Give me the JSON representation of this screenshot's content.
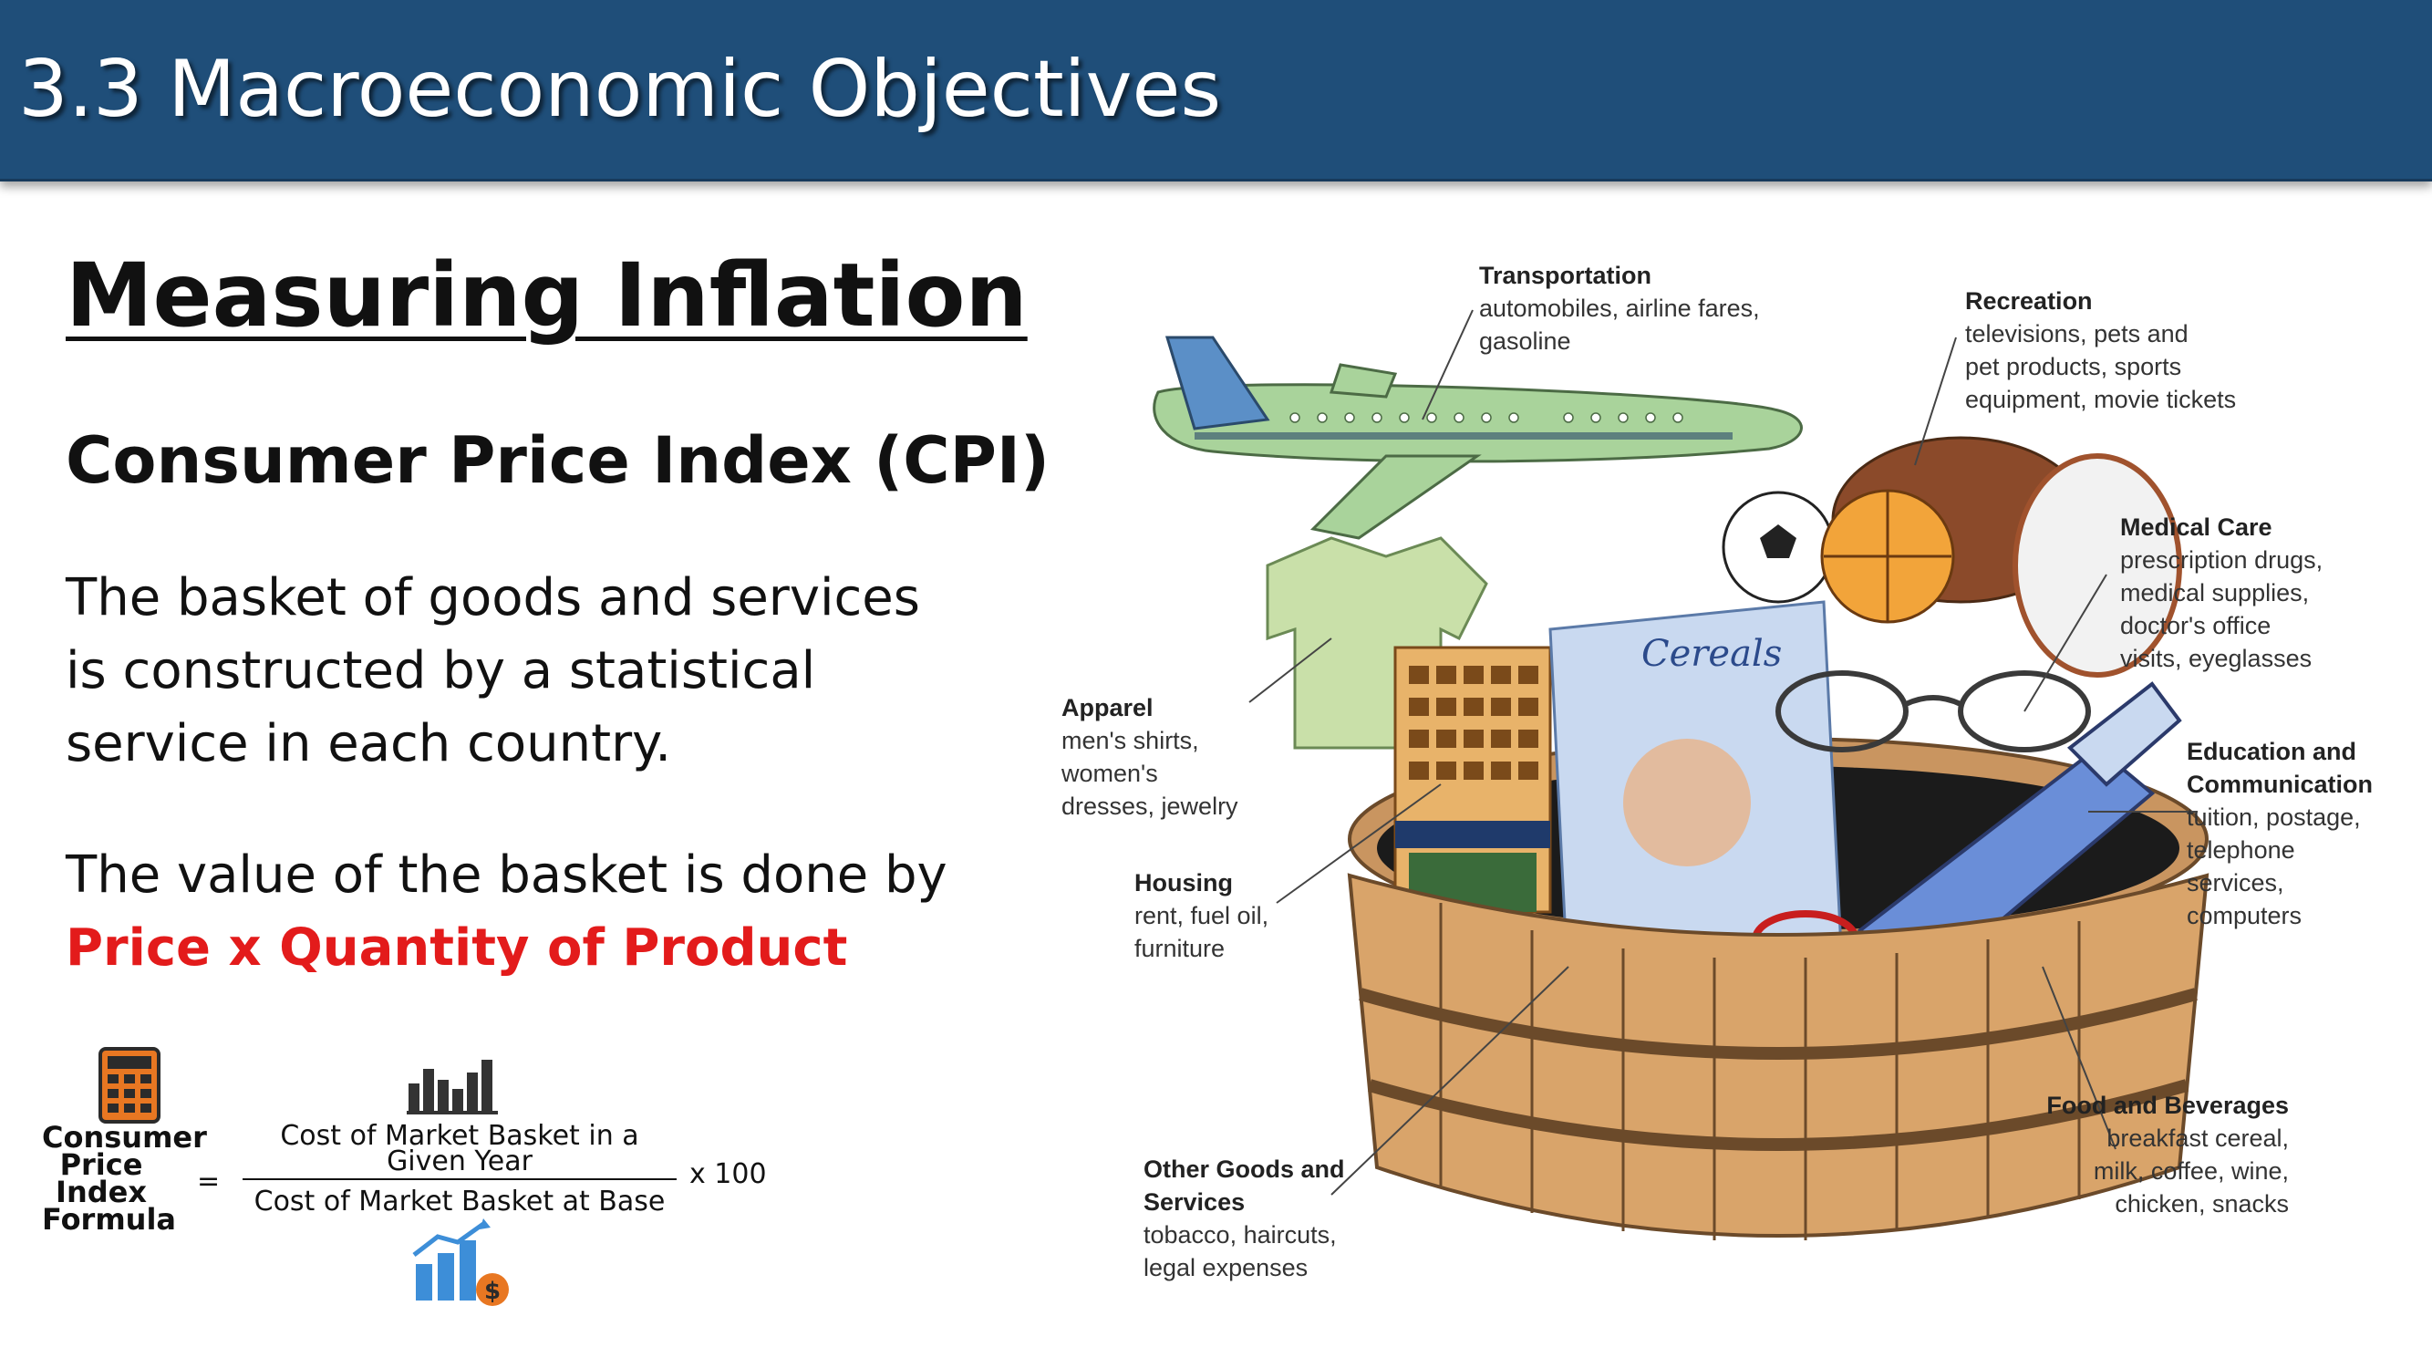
{
  "header": {
    "title": "3.3 Macroeconomic Objectives"
  },
  "content": {
    "section_title": "Measuring Inflation",
    "sub_title": "Consumer Price Index (CPI)",
    "paragraph1_lines": [
      "The basket of goods and services",
      "is constructed by a statistical",
      "service in each country."
    ],
    "paragraph2_line": "The value of the basket is done by",
    "paragraph2_highlight": "Price x Quantity of Product",
    "highlight_color": "#e31b1b"
  },
  "formula": {
    "label_lines": [
      "Consumer",
      "Price",
      "Index",
      "Formula"
    ],
    "equals": "=",
    "numerator_lines": [
      "Cost of Market Basket in a",
      "Given Year"
    ],
    "denominator": "Cost of Market Basket at Base",
    "multiplier": "x 100"
  },
  "basket": {
    "cereal_box_text": "Cereals",
    "categories": [
      {
        "name": "Transportation",
        "items": [
          "automobiles, airline fares,",
          "gasoline"
        ]
      },
      {
        "name": "Recreation",
        "items": [
          "televisions, pets and",
          "pet products, sports",
          "equipment, movie tickets"
        ]
      },
      {
        "name": "Medical Care",
        "items": [
          "prescription drugs,",
          "medical supplies,",
          "doctor's office",
          "visits, eyeglasses"
        ]
      },
      {
        "name": "Apparel",
        "items": [
          "men's shirts,",
          "women's",
          "dresses,  jewelry"
        ]
      },
      {
        "name": "Education and Communication",
        "name_lines": [
          "Education and",
          "Communication"
        ],
        "items": [
          "tuition, postage,",
          "telephone",
          "services,",
          "computers"
        ]
      },
      {
        "name": "Housing",
        "items": [
          "rent, fuel oil,",
          "furniture"
        ]
      },
      {
        "name": "Food and Beverages",
        "items": [
          "breakfast cereal,",
          "milk, coffee, wine,",
          "chicken, snacks"
        ]
      },
      {
        "name": "Other Goods and Services",
        "name_lines": [
          "Other Goods and",
          "Services"
        ],
        "items": [
          "tobacco, haircuts,",
          "legal expenses"
        ]
      }
    ]
  },
  "colors": {
    "header_bg": "#1f4e79",
    "basket_wood": "#d9a46a",
    "plane": "#a9d39b"
  }
}
